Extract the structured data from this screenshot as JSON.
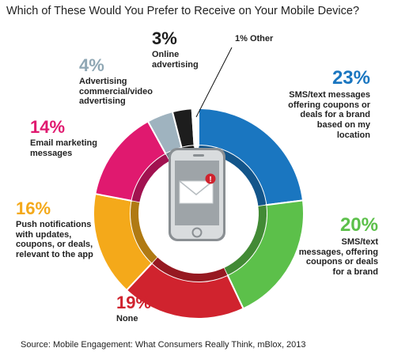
{
  "title": "Which of These Would You Prefer to Receive on Your Mobile Device?",
  "source": "Source: Mobile Engagement: What Consumers Really Think, mBlox, 2013",
  "chart_data": {
    "type": "pie",
    "title": "Which of These Would You Prefer to Receive on Your Mobile Device?",
    "slices": [
      {
        "label": "SMS/text messages offering coupons or deals for a brand based on my location",
        "pct_label": "23%",
        "value": 23,
        "color": "#1a76c0"
      },
      {
        "label": "SMS/text messages, offering coupons or deals for a brand",
        "pct_label": "20%",
        "value": 20,
        "color": "#5cc04a"
      },
      {
        "label": "None",
        "pct_label": "19%",
        "value": 19,
        "color": "#d0232e"
      },
      {
        "label": "Push notifications with updates, coupons, or deals, relevant to the app",
        "pct_label": "16%",
        "value": 16,
        "color": "#f4a91a"
      },
      {
        "label": "Email marketing messages",
        "pct_label": "14%",
        "value": 14,
        "color": "#e0196f"
      },
      {
        "label": "Advertising commercial/video advertising",
        "pct_label": "4%",
        "value": 4,
        "color": "#9fb3bf"
      },
      {
        "label": "Online advertising",
        "pct_label": "3%",
        "value": 3,
        "color": "#1d1d1d"
      },
      {
        "label": "Other",
        "pct_label": "1% Other",
        "value": 1,
        "color": "#ffffff"
      }
    ]
  }
}
